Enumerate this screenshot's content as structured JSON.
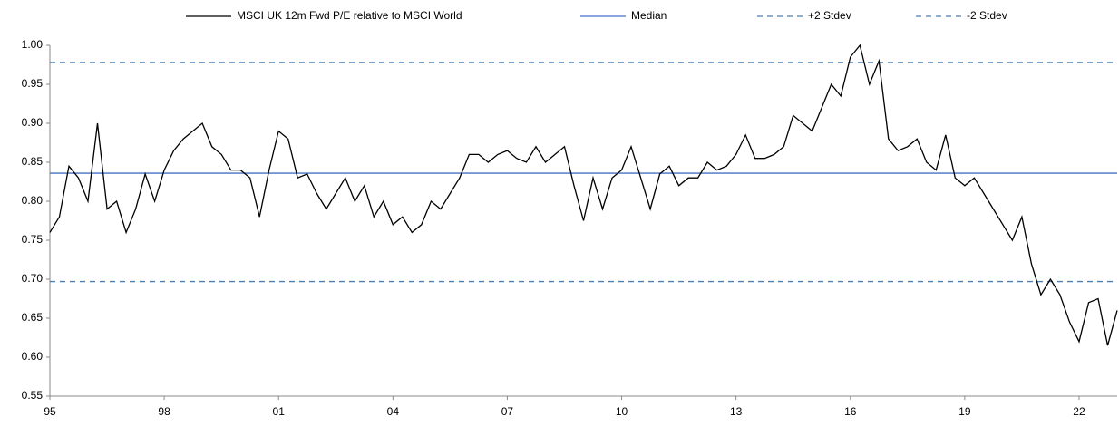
{
  "chart_data": {
    "type": "line",
    "series": [
      {
        "name": "MSCI UK 12m Fwd P/E relative to MSCI World",
        "color": "#000000",
        "x": [
          1995,
          1995.25,
          1995.5,
          1995.75,
          1996,
          1996.25,
          1996.5,
          1996.75,
          1997,
          1997.25,
          1997.5,
          1997.75,
          1998,
          1998.25,
          1998.5,
          1998.75,
          1999,
          1999.25,
          1999.5,
          1999.75,
          2000,
          2000.25,
          2000.5,
          2000.75,
          2001,
          2001.25,
          2001.5,
          2001.75,
          2002,
          2002.25,
          2002.5,
          2002.75,
          2003,
          2003.25,
          2003.5,
          2003.75,
          2004,
          2004.25,
          2004.5,
          2004.75,
          2005,
          2005.25,
          2005.5,
          2005.75,
          2006,
          2006.25,
          2006.5,
          2006.75,
          2007,
          2007.25,
          2007.5,
          2007.75,
          2008,
          2008.25,
          2008.5,
          2008.75,
          2009,
          2009.25,
          2009.5,
          2009.75,
          2010,
          2010.25,
          2010.5,
          2010.75,
          2011,
          2011.25,
          2011.5,
          2011.75,
          2012,
          2012.25,
          2012.5,
          2012.75,
          2013,
          2013.25,
          2013.5,
          2013.75,
          2014,
          2014.25,
          2014.5,
          2014.75,
          2015,
          2015.25,
          2015.5,
          2015.75,
          2016,
          2016.25,
          2016.5,
          2016.75,
          2017,
          2017.25,
          2017.5,
          2017.75,
          2018,
          2018.25,
          2018.5,
          2018.75,
          2019,
          2019.25,
          2019.5,
          2019.75,
          2020,
          2020.25,
          2020.5,
          2020.75,
          2021,
          2021.25,
          2021.5,
          2021.75,
          2022,
          2022.25,
          2022.5,
          2022.75,
          2023
        ],
        "values": [
          0.76,
          0.78,
          0.845,
          0.83,
          0.8,
          0.9,
          0.79,
          0.8,
          0.76,
          0.79,
          0.835,
          0.8,
          0.84,
          0.865,
          0.88,
          0.89,
          0.9,
          0.87,
          0.86,
          0.84,
          0.84,
          0.83,
          0.78,
          0.84,
          0.89,
          0.88,
          0.83,
          0.835,
          0.81,
          0.79,
          0.81,
          0.83,
          0.8,
          0.82,
          0.78,
          0.8,
          0.77,
          0.78,
          0.76,
          0.77,
          0.8,
          0.79,
          0.81,
          0.83,
          0.86,
          0.86,
          0.85,
          0.86,
          0.865,
          0.855,
          0.85,
          0.87,
          0.85,
          0.86,
          0.87,
          0.82,
          0.775,
          0.83,
          0.79,
          0.83,
          0.84,
          0.87,
          0.83,
          0.79,
          0.835,
          0.845,
          0.82,
          0.83,
          0.83,
          0.85,
          0.84,
          0.845,
          0.86,
          0.885,
          0.855,
          0.855,
          0.86,
          0.87,
          0.91,
          0.9,
          0.89,
          0.92,
          0.95,
          0.935,
          0.985,
          1.0,
          0.95,
          0.98,
          0.88,
          0.865,
          0.87,
          0.88,
          0.85,
          0.84,
          0.885,
          0.83,
          0.82,
          0.83,
          0.81,
          0.79,
          0.77,
          0.75,
          0.78,
          0.72,
          0.68,
          0.7,
          0.68,
          0.645,
          0.62,
          0.67,
          0.675,
          0.615,
          0.66
        ]
      }
    ],
    "reference_lines": [
      {
        "name": "Median",
        "value": 0.836,
        "color": "#4472c4",
        "dashed": false
      },
      {
        "name": "+2 Stdev",
        "value": 0.978,
        "color": "#4a7fb5",
        "dashed": true
      },
      {
        "name": "-2 Stdev",
        "value": 0.697,
        "color": "#4a7fb5",
        "dashed": true
      }
    ],
    "xlim": [
      1995,
      2023
    ],
    "xticks": [
      {
        "value": 1995,
        "label": "95"
      },
      {
        "value": 1998,
        "label": "98"
      },
      {
        "value": 2001,
        "label": "01"
      },
      {
        "value": 2004,
        "label": "04"
      },
      {
        "value": 2007,
        "label": "07"
      },
      {
        "value": 2010,
        "label": "10"
      },
      {
        "value": 2013,
        "label": "13"
      },
      {
        "value": 2016,
        "label": "16"
      },
      {
        "value": 2019,
        "label": "19"
      },
      {
        "value": 2022,
        "label": "22"
      }
    ],
    "ylim": [
      0.55,
      1.0
    ],
    "yticks": [
      {
        "value": 0.55,
        "label": "0.55"
      },
      {
        "value": 0.6,
        "label": "0.60"
      },
      {
        "value": 0.65,
        "label": "0.65"
      },
      {
        "value": 0.7,
        "label": "0.70"
      },
      {
        "value": 0.75,
        "label": "0.75"
      },
      {
        "value": 0.8,
        "label": "0.80"
      },
      {
        "value": 0.85,
        "label": "0.85"
      },
      {
        "value": 0.9,
        "label": "0.90"
      },
      {
        "value": 0.95,
        "label": "0.95"
      },
      {
        "value": 1.0,
        "label": "1.00"
      }
    ],
    "grid": false,
    "legend": "top"
  }
}
